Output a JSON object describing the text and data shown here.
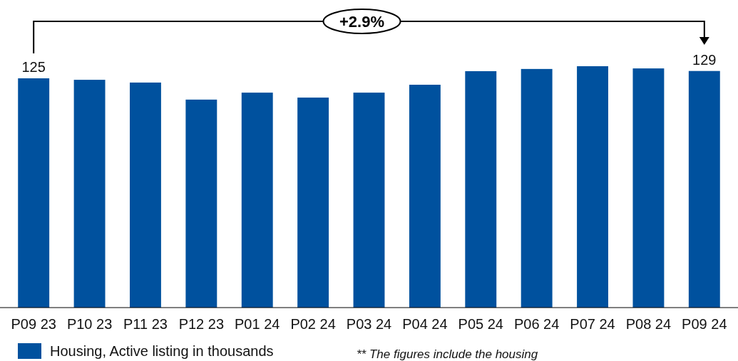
{
  "chart_data": {
    "type": "bar",
    "categories": [
      "P09 23",
      "P10 23",
      "P11 23",
      "P12 23",
      "P01 24",
      "P02 24",
      "P03 24",
      "P04 24",
      "P05 24",
      "P06 24",
      "P07 24",
      "P08 24",
      "P09 24"
    ],
    "series": [
      {
        "name": "Housing, Active listing in thousands",
        "color": "#00519e",
        "values": [
          125,
          124.2,
          122.7,
          113.4,
          117.2,
          114.5,
          117.2,
          121.5,
          128.9,
          130.1,
          131.6,
          130.4,
          129
        ],
        "value_labels": [
          "125",
          null,
          null,
          null,
          null,
          null,
          null,
          null,
          null,
          null,
          null,
          null,
          "129"
        ]
      }
    ],
    "annotations": [
      "+2.9%",
      "** The figures include the housing"
    ],
    "legend": "bottom"
  }
}
